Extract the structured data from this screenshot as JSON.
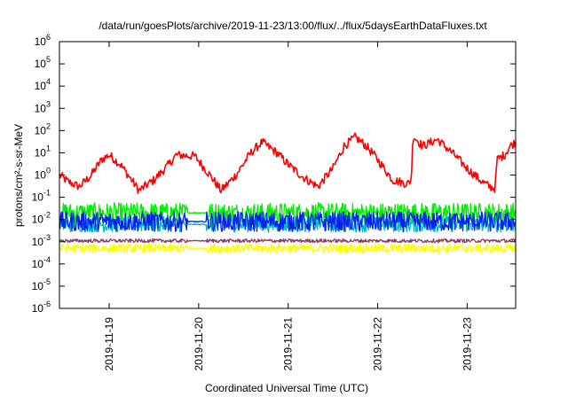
{
  "chart_data": {
    "type": "line",
    "title": "/data/run/goesPlots/archive/2019-11-23/13:00/flux/../flux/5daysEarthDataFluxes.txt",
    "xlabel": "Coordinated Universal Time (UTC)",
    "ylabel": "protons/cm²-s-sr-MeV",
    "yscale": "log",
    "ylim": [
      1e-06,
      1000000.0
    ],
    "xlim": [
      "2019-11-18 10:40",
      "2019-11-23 13:00"
    ],
    "grid": false,
    "legend": "none",
    "y_ticks": [
      {
        "value": 1e-06,
        "base": "10",
        "exp": "-6"
      },
      {
        "value": 1e-05,
        "base": "10",
        "exp": "-5"
      },
      {
        "value": 0.0001,
        "base": "10",
        "exp": "-4"
      },
      {
        "value": 0.001,
        "base": "10",
        "exp": "-3"
      },
      {
        "value": 0.01,
        "base": "10",
        "exp": "-2"
      },
      {
        "value": 0.1,
        "base": "10",
        "exp": "-1"
      },
      {
        "value": 1,
        "base": "10",
        "exp": "0"
      },
      {
        "value": 10,
        "base": "10",
        "exp": "1"
      },
      {
        "value": 100,
        "base": "10",
        "exp": "2"
      },
      {
        "value": 1000,
        "base": "10",
        "exp": "3"
      },
      {
        "value": 10000,
        "base": "10",
        "exp": "4"
      },
      {
        "value": 100000,
        "base": "10",
        "exp": "5"
      },
      {
        "value": 1000000,
        "base": "10",
        "exp": "6"
      }
    ],
    "x_ticks": [
      {
        "at": "2019-11-19 00:00",
        "label": "2019-11-19"
      },
      {
        "at": "2019-11-20 00:00",
        "label": "2019-11-20"
      },
      {
        "at": "2019-11-21 00:00",
        "label": "2019-11-21"
      },
      {
        "at": "2019-11-22 00:00",
        "label": "2019-11-22"
      },
      {
        "at": "2019-11-23 00:00",
        "label": "2019-11-23"
      }
    ],
    "series": [
      {
        "color": "#ff0000",
        "points": [
          [
            "2019-11-18 10:40",
            1.0
          ],
          [
            "2019-11-18 13:00",
            0.5
          ],
          [
            "2019-11-18 16:00",
            0.3
          ],
          [
            "2019-11-18 19:00",
            0.9
          ],
          [
            "2019-11-18 22:00",
            5.0
          ],
          [
            "2019-11-19 00:00",
            8.0
          ],
          [
            "2019-11-19 03:00",
            3.0
          ],
          [
            "2019-11-19 06:00",
            0.6
          ],
          [
            "2019-11-19 08:00",
            0.2
          ],
          [
            "2019-11-19 12:00",
            0.6
          ],
          [
            "2019-11-19 16:00",
            3.0
          ],
          [
            "2019-11-19 18:00",
            8.0
          ],
          [
            "2019-11-19 23:00",
            7.0
          ],
          [
            "2019-11-20 03:00",
            1.0
          ],
          [
            "2019-11-20 06:00",
            0.2
          ],
          [
            "2019-11-20 10:00",
            1.0
          ],
          [
            "2019-11-20 14:00",
            10.0
          ],
          [
            "2019-11-20 17:00",
            30.0
          ],
          [
            "2019-11-20 21:00",
            10.0
          ],
          [
            "2019-11-21 00:00",
            3.0
          ],
          [
            "2019-11-21 04:00",
            0.8
          ],
          [
            "2019-11-21 08:00",
            0.3
          ],
          [
            "2019-11-21 12:00",
            2.0
          ],
          [
            "2019-11-21 15:00",
            20.0
          ],
          [
            "2019-11-21 18:00",
            50.0
          ],
          [
            "2019-11-21 21:00",
            20.0
          ],
          [
            "2019-11-22 00:00",
            5.0
          ],
          [
            "2019-11-22 04:00",
            0.6
          ],
          [
            "2019-11-22 08:00",
            0.4
          ],
          [
            "2019-11-22 09:00",
            0.6
          ],
          [
            "2019-11-22 09:30",
            60.0
          ],
          [
            "2019-11-22 12:00",
            20.0
          ],
          [
            "2019-11-22 16:00",
            40.0
          ],
          [
            "2019-11-22 20:00",
            10.0
          ],
          [
            "2019-11-23 00:00",
            2.0
          ],
          [
            "2019-11-23 04:00",
            0.5
          ],
          [
            "2019-11-23 06:00",
            0.3
          ],
          [
            "2019-11-23 07:30",
            0.25
          ],
          [
            "2019-11-23 08:00",
            5.0
          ],
          [
            "2019-11-23 10:00",
            8.0
          ],
          [
            "2019-11-23 11:30",
            20.0
          ],
          [
            "2019-11-23 13:00",
            30.0
          ]
        ],
        "noise_dex": 0.2
      },
      {
        "color": "#00ee00",
        "base": 0.02,
        "noise_dex": 0.45,
        "points": [
          [
            "2019-11-18 10:40",
            0.02
          ],
          [
            "2019-11-23 13:00",
            0.02
          ]
        ]
      },
      {
        "color": "#00bbbb",
        "base": 0.006,
        "noise_dex": 0.35,
        "points": [
          [
            "2019-11-18 10:40",
            0.006
          ],
          [
            "2019-11-23 13:00",
            0.006
          ]
        ]
      },
      {
        "color": "#0022ee",
        "base": 0.008,
        "noise_dex": 0.45,
        "points": [
          [
            "2019-11-18 10:40",
            0.008
          ],
          [
            "2019-11-23 13:00",
            0.008
          ]
        ]
      },
      {
        "color": "#ffff00",
        "base": 0.0005,
        "noise_dex": 0.2,
        "points": [
          [
            "2019-11-18 10:40",
            0.0005
          ],
          [
            "2019-11-23 13:00",
            0.0005
          ]
        ]
      },
      {
        "color": "#8b3a62",
        "base": 0.0011,
        "noise_dex": 0.08,
        "points": [
          [
            "2019-11-18 10:40",
            0.0011
          ],
          [
            "2019-11-23 13:00",
            0.0011
          ]
        ]
      }
    ]
  }
}
